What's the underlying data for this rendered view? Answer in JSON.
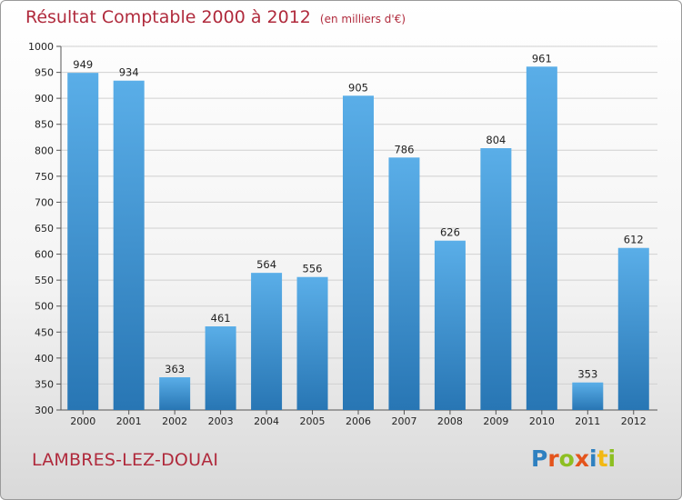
{
  "header": {
    "title": "Résultat Comptable 2000 à 2012",
    "unit": "(en milliers d'€)"
  },
  "footer": {
    "city": "LAMBRES-LEZ-DOUAI",
    "logo_letters": [
      "P",
      "r",
      "o",
      "x",
      "i",
      "t",
      "i"
    ],
    "logo_colors": [
      "#2e80c0",
      "#e4541c",
      "#8dbf22",
      "#e4541c",
      "#2e80c0",
      "#f2b813",
      "#8dbf22"
    ]
  },
  "colors": {
    "title": "#b02a3c",
    "bar_top": "#5aaee8",
    "bar_bottom": "#2876b4",
    "grid": "#d0d0d0"
  },
  "chart_data": {
    "type": "bar",
    "title": "Résultat Comptable 2000 à 2012",
    "categories": [
      "2000",
      "2001",
      "2002",
      "2003",
      "2004",
      "2005",
      "2006",
      "2007",
      "2008",
      "2009",
      "2010",
      "2011",
      "2012"
    ],
    "values": [
      949,
      934,
      363,
      461,
      564,
      556,
      905,
      786,
      626,
      804,
      961,
      353,
      612
    ],
    "ylim": [
      300,
      1000
    ],
    "yticks": [
      300,
      350,
      400,
      450,
      500,
      550,
      600,
      650,
      700,
      750,
      800,
      850,
      900,
      950,
      1000
    ],
    "grid": true,
    "data_labels": true
  }
}
